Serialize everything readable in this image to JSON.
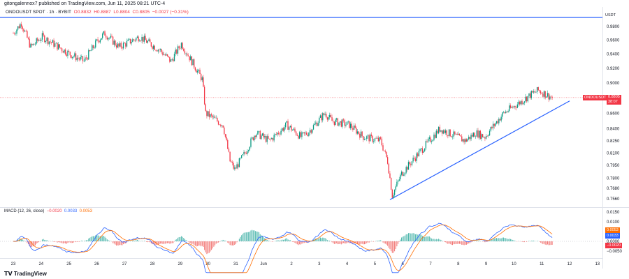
{
  "header": {
    "publisher": "gitongalennox7 published on TradingView.com, Jun 11, 2025 08:21 UTC-4"
  },
  "symbol_bar": {
    "symbol": "ONDOUSDT SPOT · 1h · BYBIT",
    "open": "O0.8832",
    "high": "H0.8887",
    "low": "L0.8804",
    "close": "C0.8805",
    "change": "−0.0027 (−0.31%)"
  },
  "price_axis": {
    "currency": "USDT",
    "scale": "log",
    "ticks": [
      "0.9800",
      "0.9600",
      "0.9400",
      "0.9200",
      "0.9000",
      "0.8600",
      "0.8400",
      "0.8250",
      "0.8100",
      "0.7950",
      "0.7800",
      "0.7680",
      "0.7560"
    ]
  },
  "price_tag": {
    "symbol": "ONDOUSDT",
    "price": "0.8805",
    "countdown": "38:07"
  },
  "macd": {
    "label": "MACD (12, 26, close)",
    "hist": "−0.0020",
    "macd": "0.0033",
    "signal": "0.0053",
    "fast": 12,
    "slow": 26,
    "ticks": [
      "0.0150",
      "0.0100",
      "0.0000",
      "−0.0050"
    ],
    "tags": {
      "signal": "0.0053",
      "macd": "0.0033",
      "hist": "−0.0020"
    }
  },
  "time_axis": {
    "ticks": [
      "23",
      "24",
      "25",
      "26",
      "27",
      "28",
      "29",
      "30",
      "31",
      "Jun",
      "2",
      "3",
      "4",
      "5",
      "6",
      "7",
      "8",
      "9",
      "10",
      "11",
      "12",
      "13"
    ]
  },
  "footer": {
    "logo": "TradingView"
  },
  "colors": {
    "up": "#089981",
    "down": "#f23645",
    "macd": "#2962ff",
    "signal": "#ff6d00",
    "drawing": "#2962ff"
  },
  "chart_data": {
    "type": "candlestick",
    "interval": "1h",
    "ylim": [
      0.756,
      0.995
    ],
    "close_path": [
      [
        "2025-05-23T00:00",
        0.97
      ],
      [
        "2025-05-23T07:00",
        0.985
      ],
      [
        "2025-05-23T15:00",
        0.95
      ],
      [
        "2025-05-24T01:00",
        0.965
      ],
      [
        "2025-05-25T01:00",
        0.94
      ],
      [
        "2025-05-25T13:00",
        0.93
      ],
      [
        "2025-05-26T01:00",
        0.96
      ],
      [
        "2025-05-26T07:00",
        0.97
      ],
      [
        "2025-05-26T19:00",
        0.95
      ],
      [
        "2025-05-27T13:00",
        0.965
      ],
      [
        "2025-05-28T07:00",
        0.945
      ],
      [
        "2025-05-28T16:00",
        0.93
      ],
      [
        "2025-05-29T01:00",
        0.955
      ],
      [
        "2025-05-29T10:00",
        0.93
      ],
      [
        "2025-05-29T19:00",
        0.905
      ],
      [
        "2025-05-29T22:00",
        0.86
      ],
      [
        "2025-05-30T13:00",
        0.845
      ],
      [
        "2025-05-30T19:00",
        0.8
      ],
      [
        "2025-05-30T23:00",
        0.79
      ],
      [
        "2025-05-31T08:00",
        0.81
      ],
      [
        "2025-05-31T17:00",
        0.835
      ],
      [
        "2025-06-01T05:00",
        0.825
      ],
      [
        "2025-06-01T20:00",
        0.845
      ],
      [
        "2025-06-02T08:00",
        0.83
      ],
      [
        "2025-06-02T14:00",
        0.835
      ],
      [
        "2025-06-03T05:00",
        0.86
      ],
      [
        "2025-06-03T11:00",
        0.85
      ],
      [
        "2025-06-04T02:00",
        0.845
      ],
      [
        "2025-06-04T14:00",
        0.83
      ],
      [
        "2025-06-05T05:00",
        0.825
      ],
      [
        "2025-06-05T11:00",
        0.8
      ],
      [
        "2025-06-05T15:00",
        0.76
      ],
      [
        "2025-06-05T23:00",
        0.785
      ],
      [
        "2025-06-06T14:00",
        0.81
      ],
      [
        "2025-06-07T08:00",
        0.84
      ],
      [
        "2025-06-08T06:00",
        0.825
      ],
      [
        "2025-06-08T15:00",
        0.835
      ],
      [
        "2025-06-08T23:00",
        0.83
      ],
      [
        "2025-06-09T15:00",
        0.86
      ],
      [
        "2025-06-10T06:00",
        0.875
      ],
      [
        "2025-06-10T15:00",
        0.885
      ],
      [
        "2025-06-10T21:00",
        0.89
      ],
      [
        "2025-06-11T09:00",
        0.8805
      ]
    ],
    "horizontal_line": 0.9935,
    "trendline": [
      [
        "2025-06-05T13:00",
        0.755
      ],
      [
        "2025-06-12T00:00",
        0.876
      ]
    ],
    "last_price": 0.8805
  }
}
